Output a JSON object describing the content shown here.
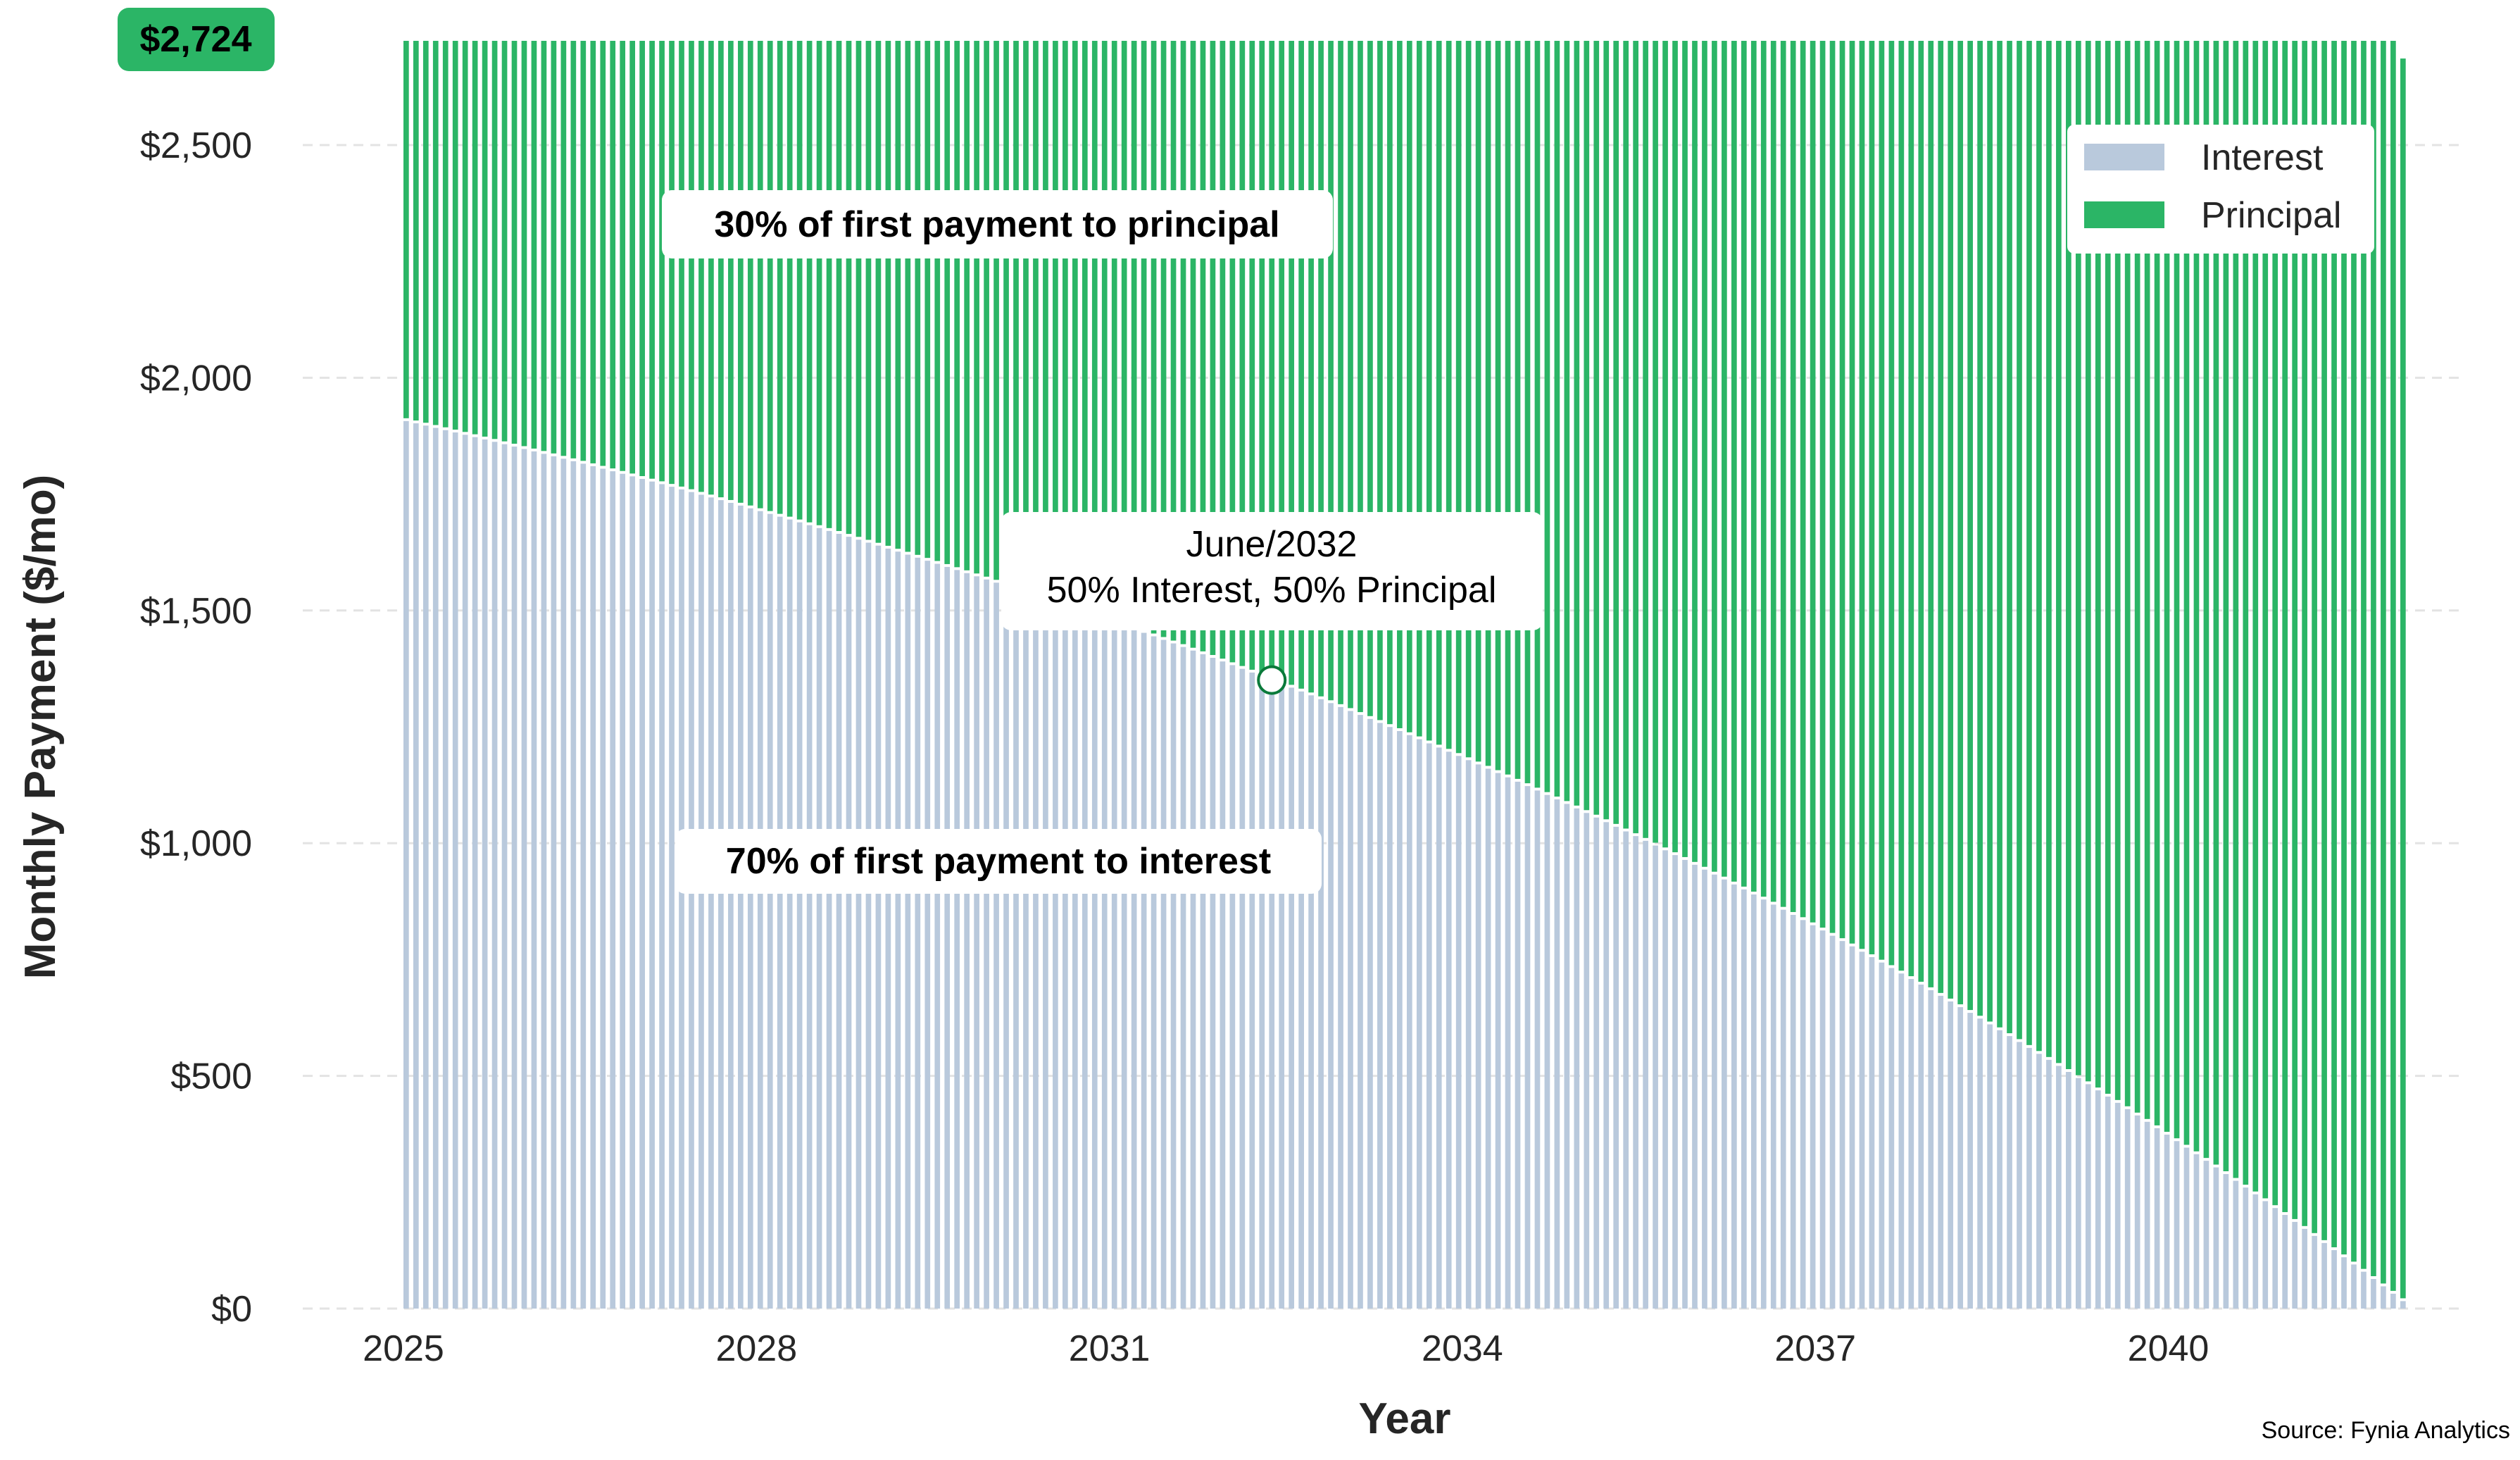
{
  "chart_data": {
    "type": "bar",
    "stacked": true,
    "title": "",
    "xlabel": "Year",
    "ylabel": "Monthly Payment ($/mo)",
    "ylim": [
      0,
      2724
    ],
    "grid": true,
    "y_ticks": [
      0,
      500,
      1000,
      1500,
      2000,
      2500
    ],
    "y_tick_labels": [
      "$0",
      "$500",
      "$1,000",
      "$1,500",
      "$2,000",
      "$2,500"
    ],
    "x_ticks": [
      2025,
      2028,
      2031,
      2034,
      2037,
      2040
    ],
    "x_tick_labels": [
      "2025",
      "2028",
      "2031",
      "2034",
      "2037",
      "2040"
    ],
    "start_year": 2025,
    "num_payments": 204,
    "monthly_payment": 2724,
    "first_payment_interest": 1907,
    "first_payment_principal": 817,
    "final_payment_total": 2686,
    "series": [
      {
        "name": "Interest",
        "color": "#b9c9dc",
        "description": "declines from ~1907 to ~15 over 204 monthly payments"
      },
      {
        "name": "Principal",
        "color": "#2bb566",
        "description": "rises from ~817 to ~2670"
      }
    ],
    "legend": {
      "placement": "top-right",
      "entries": [
        "Interest",
        "Principal"
      ]
    },
    "annotations": {
      "payment_badge": "$2,724",
      "principal_note": "30% of first payment to principal",
      "interest_note": "70% of first payment to interest",
      "crossover_line1": "June/2032",
      "crossover_line2": "50% Interest, 50% Principal",
      "crossover_month_index": 89
    },
    "source": "Source: Fynia Analytics"
  }
}
